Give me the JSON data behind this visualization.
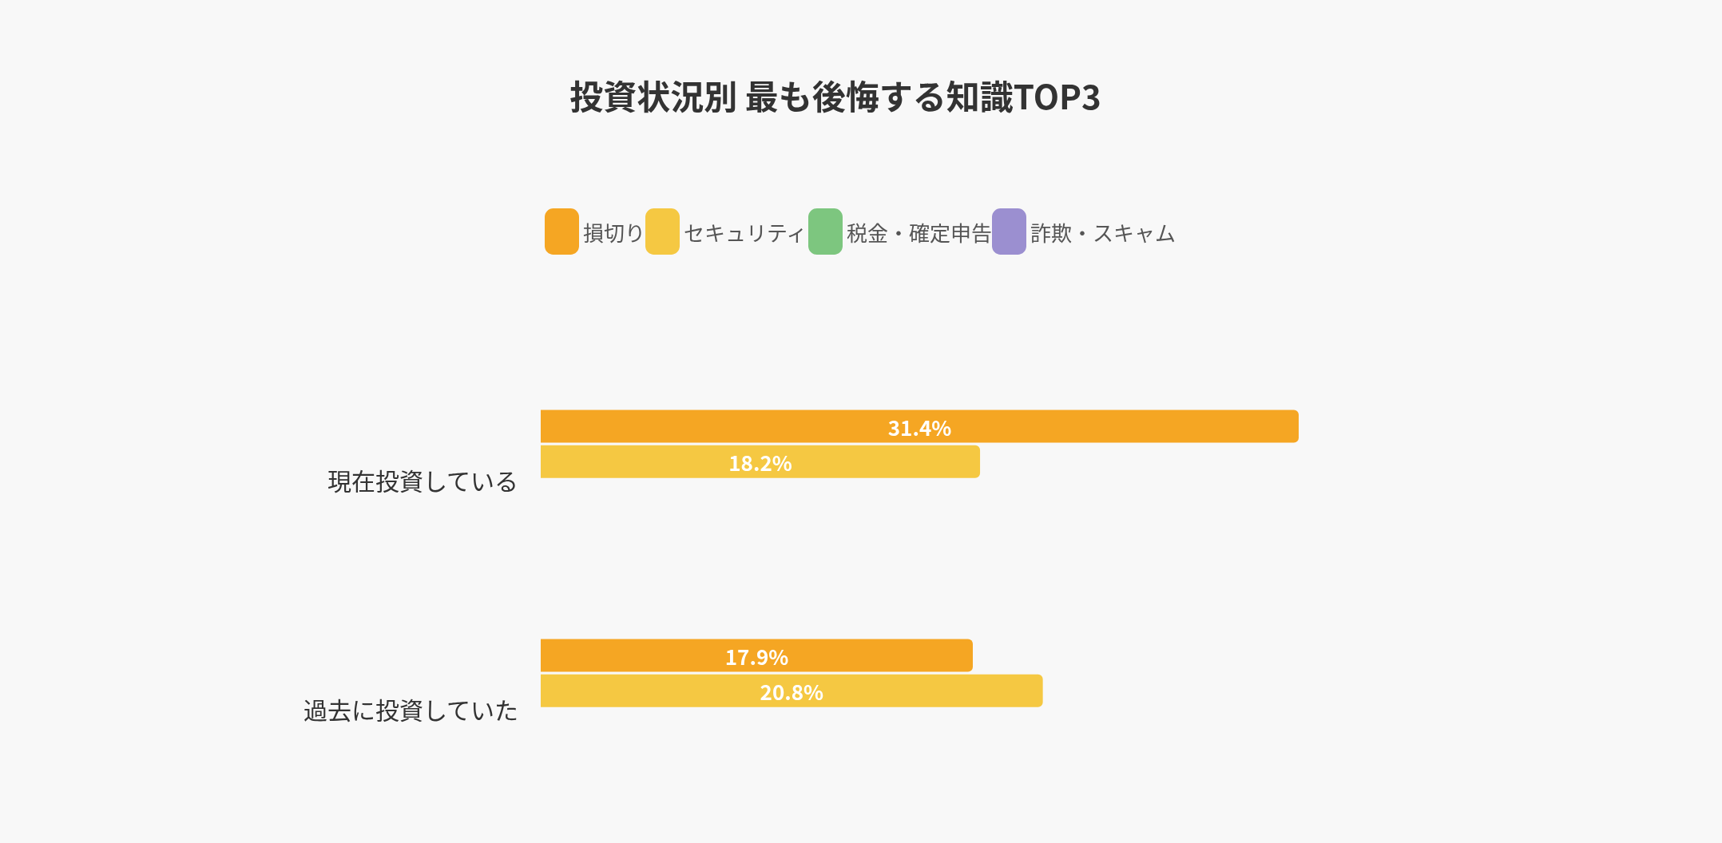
{
  "chart_data": {
    "type": "bar",
    "orientation": "horizontal",
    "title": "投資状況別 最も後悔する知識TOP3",
    "categories": [
      "現在投資している",
      "過去に投資していた"
    ],
    "series": [
      {
        "name": "損切り",
        "color": "#f5a623",
        "values": [
          31.4,
          17.9
        ],
        "value_labels": [
          "31.4%",
          "17.9%"
        ]
      },
      {
        "name": "セキュリティ",
        "color": "#f5c842",
        "values": [
          18.2,
          20.8
        ],
        "value_labels": [
          "18.2%",
          "20.8%"
        ]
      },
      {
        "name": "税金・確定申告",
        "color": "#7dc67f",
        "values": [
          null,
          null
        ]
      },
      {
        "name": "詐欺・スキャム",
        "color": "#9b8fd0",
        "values": [
          null,
          null
        ]
      }
    ],
    "legend": "top",
    "grid": false
  }
}
